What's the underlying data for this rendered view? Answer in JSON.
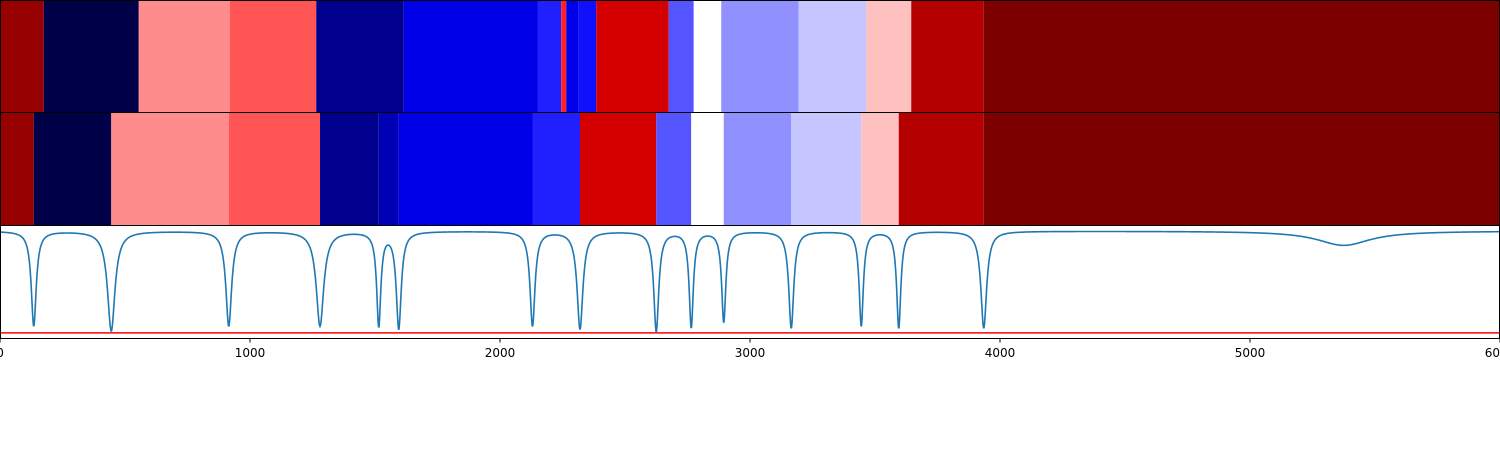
{
  "chart_data": {
    "type": "heatmap",
    "title": "",
    "xlabel": "",
    "ylabel": "",
    "xlim": [
      0,
      6000
    ],
    "xticks": [
      0,
      1000,
      2000,
      3000,
      4000,
      5000,
      6000
    ],
    "tick_labels": [
      "0",
      "1000",
      "2000",
      "3000",
      "4000",
      "5000",
      "6000"
    ],
    "colormap": "seismic",
    "rows": [
      {
        "segments": [
          {
            "start": 0,
            "end": 175,
            "color": "#960000"
          },
          {
            "start": 175,
            "end": 555,
            "color": "#000048"
          },
          {
            "start": 555,
            "end": 920,
            "color": "#ff8c8c"
          },
          {
            "start": 920,
            "end": 1265,
            "color": "#ff5555"
          },
          {
            "start": 1265,
            "end": 1615,
            "color": "#00008c"
          },
          {
            "start": 1615,
            "end": 2150,
            "color": "#0000e8"
          },
          {
            "start": 2150,
            "end": 2245,
            "color": "#2020ff"
          },
          {
            "start": 2245,
            "end": 2265,
            "color": "#ff2020"
          },
          {
            "start": 2265,
            "end": 2315,
            "color": "#0000e8"
          },
          {
            "start": 2315,
            "end": 2385,
            "color": "#1010ff"
          },
          {
            "start": 2385,
            "end": 2675,
            "color": "#d40000"
          },
          {
            "start": 2675,
            "end": 2775,
            "color": "#5555ff"
          },
          {
            "start": 2775,
            "end": 2885,
            "color": "#ffffff"
          },
          {
            "start": 2885,
            "end": 3195,
            "color": "#9090ff"
          },
          {
            "start": 3195,
            "end": 3465,
            "color": "#c5c5ff"
          },
          {
            "start": 3465,
            "end": 3645,
            "color": "#ffc0c0"
          },
          {
            "start": 3645,
            "end": 3935,
            "color": "#b40000"
          },
          {
            "start": 3935,
            "end": 6000,
            "color": "#7c0000"
          }
        ]
      },
      {
        "segments": [
          {
            "start": 0,
            "end": 135,
            "color": "#960000"
          },
          {
            "start": 135,
            "end": 445,
            "color": "#000048"
          },
          {
            "start": 445,
            "end": 915,
            "color": "#ff8c8c"
          },
          {
            "start": 915,
            "end": 1280,
            "color": "#ff5555"
          },
          {
            "start": 1280,
            "end": 1515,
            "color": "#00008c"
          },
          {
            "start": 1515,
            "end": 1595,
            "color": "#0000b4"
          },
          {
            "start": 1595,
            "end": 2130,
            "color": "#0000e8"
          },
          {
            "start": 2130,
            "end": 2320,
            "color": "#2020ff"
          },
          {
            "start": 2320,
            "end": 2625,
            "color": "#d40000"
          },
          {
            "start": 2625,
            "end": 2765,
            "color": "#5555ff"
          },
          {
            "start": 2765,
            "end": 2895,
            "color": "#ffffff"
          },
          {
            "start": 2895,
            "end": 3165,
            "color": "#9090ff"
          },
          {
            "start": 3165,
            "end": 3445,
            "color": "#c5c5ff"
          },
          {
            "start": 3445,
            "end": 3595,
            "color": "#ffc0c0"
          },
          {
            "start": 3595,
            "end": 3935,
            "color": "#b40000"
          },
          {
            "start": 3935,
            "end": 6000,
            "color": "#7c0000"
          }
        ]
      }
    ],
    "signal": {
      "color": "#1f77b4",
      "baseline": 1.0,
      "dips": [
        {
          "x": 135,
          "depth": 0.93,
          "width": 12
        },
        {
          "x": 445,
          "depth": 0.98,
          "width": 18
        },
        {
          "x": 915,
          "depth": 0.93,
          "width": 14
        },
        {
          "x": 1280,
          "depth": 0.93,
          "width": 18
        },
        {
          "x": 1515,
          "depth": 0.92,
          "width": 10
        },
        {
          "x": 1595,
          "depth": 0.95,
          "width": 12
        },
        {
          "x": 2130,
          "depth": 0.93,
          "width": 12
        },
        {
          "x": 2320,
          "depth": 0.96,
          "width": 14
        },
        {
          "x": 2625,
          "depth": 0.98,
          "width": 12
        },
        {
          "x": 2765,
          "depth": 0.94,
          "width": 10
        },
        {
          "x": 2895,
          "depth": 0.89,
          "width": 10
        },
        {
          "x": 3165,
          "depth": 0.95,
          "width": 12
        },
        {
          "x": 3445,
          "depth": 0.93,
          "width": 10
        },
        {
          "x": 3595,
          "depth": 0.95,
          "width": 10
        },
        {
          "x": 3935,
          "depth": 0.95,
          "width": 14
        },
        {
          "x": 5375,
          "depth": 0.14,
          "width": 130
        }
      ]
    },
    "threshold": {
      "value": 0.0,
      "color": "#ff0000"
    },
    "signal_ylim": [
      -0.05,
      1.05
    ]
  }
}
